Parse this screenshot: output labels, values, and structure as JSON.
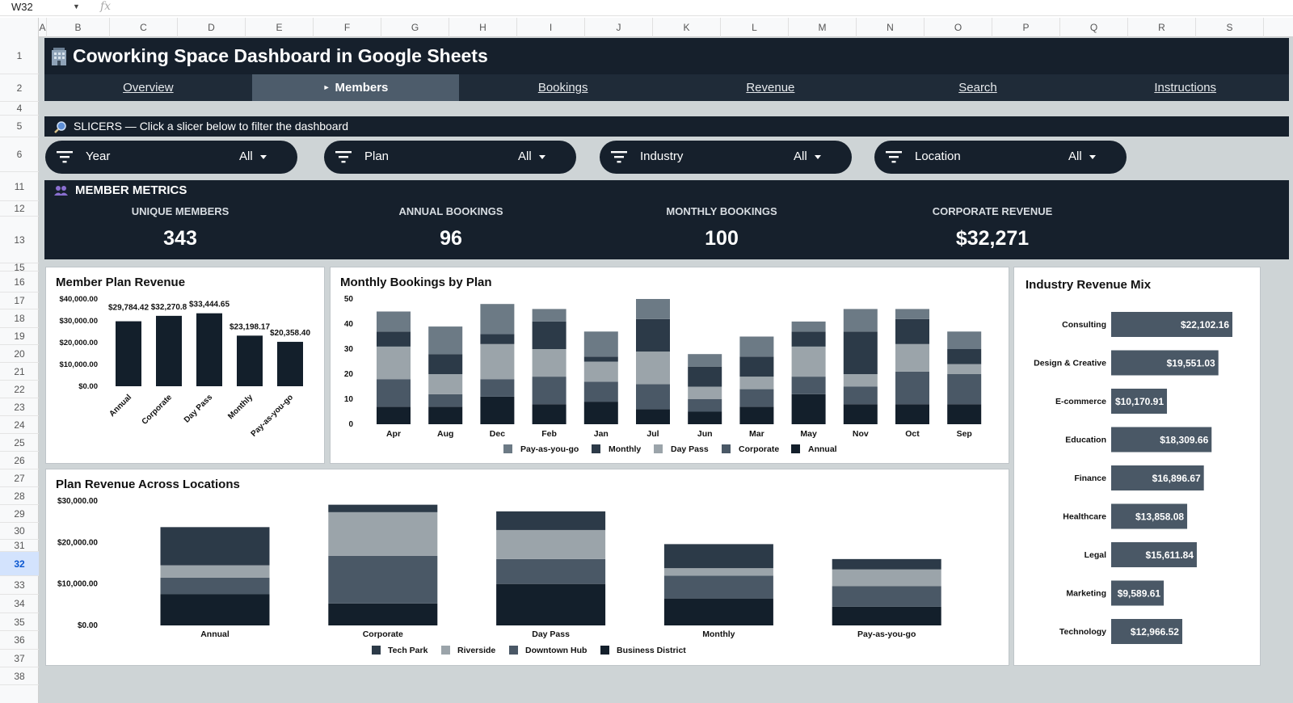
{
  "sheet": {
    "cell_ref": "W32",
    "fx": "fx",
    "columns": [
      "A",
      "B",
      "C",
      "D",
      "E",
      "F",
      "G",
      "H",
      "I",
      "J",
      "K",
      "L",
      "M",
      "N",
      "O",
      "P",
      "Q",
      "R",
      "S"
    ],
    "rows": [
      "1",
      "2",
      "4",
      "5",
      "6",
      "11",
      "12",
      "13",
      "15",
      "16",
      "17",
      "18",
      "19",
      "20",
      "21",
      "22",
      "23",
      "24",
      "25",
      "26",
      "27",
      "28",
      "29",
      "30",
      "31",
      "32",
      "33",
      "34",
      "35",
      "36",
      "37",
      "38"
    ],
    "selected_row": "32"
  },
  "header": {
    "title": "Coworking Space Dashboard in Google Sheets"
  },
  "nav": {
    "tabs": [
      {
        "label": "Overview",
        "active": false
      },
      {
        "label": "Members",
        "active": true
      },
      {
        "label": "Bookings",
        "active": false
      },
      {
        "label": "Revenue",
        "active": false
      },
      {
        "label": "Search",
        "active": false
      },
      {
        "label": "Instructions",
        "active": false
      }
    ]
  },
  "slicers": {
    "banner": "SLICERS — Click a slicer below to filter the dashboard",
    "items": [
      {
        "name": "Year",
        "value": "All"
      },
      {
        "name": "Plan",
        "value": "All"
      },
      {
        "name": "Industry",
        "value": "All"
      },
      {
        "name": "Location",
        "value": "All"
      }
    ]
  },
  "metrics": {
    "heading": "MEMBER METRICS",
    "items": [
      {
        "label": "UNIQUE MEMBERS",
        "value": "343"
      },
      {
        "label": "ANNUAL BOOKINGS",
        "value": "96"
      },
      {
        "label": "MONTHLY BOOKINGS",
        "value": "100"
      },
      {
        "label": "CORPORATE REVENUE",
        "value": "$32,271"
      }
    ]
  },
  "colors": {
    "c1": "#131f2b",
    "c2": "#4a5866",
    "c3": "#9ba4aa",
    "c4": "#6c7a85",
    "c5": "#2c3a48"
  },
  "chart_data": [
    {
      "type": "bar",
      "title": "Member Plan Revenue",
      "categories": [
        "Annual",
        "Corporate",
        "Day Pass",
        "Monthly",
        "Pay-as-you-go"
      ],
      "values": [
        29784.42,
        32270.8,
        33444.65,
        23198.17,
        20358.4
      ],
      "data_labels": [
        "$29,784.42",
        "$32,270.8",
        "$33,444.65",
        "$23,198.17",
        "$20,358.40"
      ],
      "yticks": [
        "$0.00",
        "$10,000.00",
        "$20,000.00",
        "$30,000.00",
        "$40,000.00"
      ],
      "ylim": [
        0,
        40000
      ]
    },
    {
      "type": "bar",
      "stacked": true,
      "title": "Monthly Bookings by Plan",
      "categories": [
        "Apr",
        "Aug",
        "Dec",
        "Feb",
        "Jan",
        "Jul",
        "Jun",
        "Mar",
        "May",
        "Nov",
        "Oct",
        "Sep"
      ],
      "yticks": [
        "0",
        "10",
        "20",
        "30",
        "40",
        "50"
      ],
      "ylim": [
        0,
        50
      ],
      "legend": "bottom",
      "series": [
        {
          "name": "Annual",
          "values": [
            7,
            7,
            11,
            8,
            9,
            6,
            5,
            7,
            12,
            8,
            8,
            8
          ]
        },
        {
          "name": "Corporate",
          "values": [
            11,
            5,
            7,
            11,
            8,
            10,
            5,
            7,
            7,
            7,
            13,
            12
          ]
        },
        {
          "name": "Day Pass",
          "values": [
            13,
            8,
            14,
            11,
            8,
            13,
            5,
            5,
            12,
            5,
            11,
            4
          ]
        },
        {
          "name": "Monthly",
          "values": [
            6,
            8,
            4,
            11,
            2,
            13,
            8,
            8,
            6,
            17,
            10,
            6
          ]
        },
        {
          "name": "Pay-as-you-go",
          "values": [
            8,
            11,
            12,
            5,
            10,
            8,
            5,
            8,
            4,
            9,
            4,
            7
          ]
        }
      ]
    },
    {
      "type": "bar",
      "orientation": "horizontal",
      "title": "Industry Revenue Mix",
      "categories": [
        "Consulting",
        "Design & Creative",
        "E-commerce",
        "Education",
        "Finance",
        "Healthcare",
        "Legal",
        "Marketing",
        "Technology"
      ],
      "values": [
        22102.16,
        19551.03,
        10170.91,
        18309.66,
        16896.67,
        13858.08,
        15611.84,
        9589.61,
        12966.52
      ],
      "data_labels": [
        "$22,102.16",
        "$19,551.03",
        "$10,170.91",
        "$18,309.66",
        "$16,896.67",
        "$13,858.08",
        "$15,611.84",
        "$9,589.61",
        "$12,966.52"
      ]
    },
    {
      "type": "bar",
      "stacked": true,
      "title": "Plan Revenue Across Locations",
      "categories": [
        "Annual",
        "Corporate",
        "Day Pass",
        "Monthly",
        "Pay-as-you-go"
      ],
      "yticks": [
        "$0.00",
        "$10,000.00",
        "$20,000.00",
        "$30,000.00"
      ],
      "ylim": [
        0,
        30000
      ],
      "legend": "bottom",
      "series": [
        {
          "name": "Business District",
          "values": [
            7500,
            5300,
            10000,
            6500,
            4500
          ]
        },
        {
          "name": "Downtown Hub",
          "values": [
            4000,
            11500,
            6000,
            5500,
            5000
          ]
        },
        {
          "name": "Riverside",
          "values": [
            3000,
            10500,
            7000,
            1800,
            4000
          ]
        },
        {
          "name": "Tech Park",
          "values": [
            9200,
            1800,
            4500,
            5800,
            2500
          ]
        }
      ],
      "legend_order": [
        "Tech Park",
        "Riverside",
        "Downtown Hub",
        "Business District"
      ]
    }
  ]
}
